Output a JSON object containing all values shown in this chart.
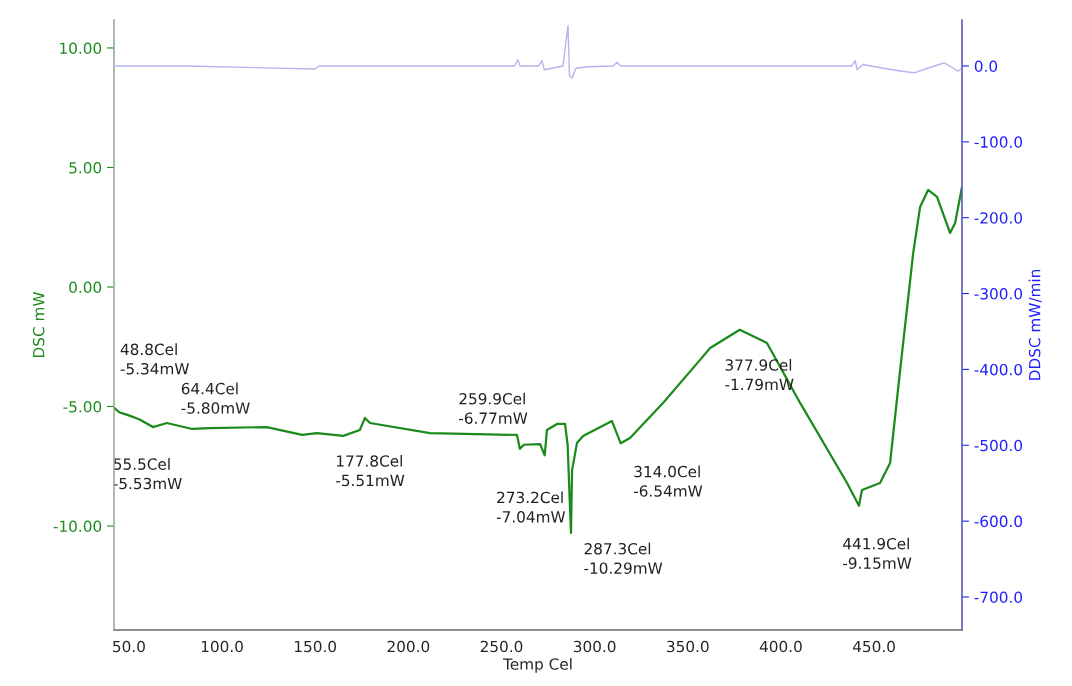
{
  "chart_data": {
    "type": "line",
    "xlabel": "Temp Cel",
    "ylabel": "DSC mW",
    "y2label": "DDSC mW/min",
    "xlim": [
      42,
      497.2
    ],
    "xticks": [
      {
        "value": 50,
        "label": "50.0"
      },
      {
        "value": 100,
        "label": "100.0"
      },
      {
        "value": 150,
        "label": "150.0"
      },
      {
        "value": 200,
        "label": "200.0"
      },
      {
        "value": 250,
        "label": "250.0"
      },
      {
        "value": 300,
        "label": "300.0"
      },
      {
        "value": 350,
        "label": "350.0"
      },
      {
        "value": 400,
        "label": "400.0"
      },
      {
        "value": 450,
        "label": "450.0"
      }
    ],
    "ylim": [
      -14.35,
      11.17
    ],
    "yticks": [
      {
        "value": -10,
        "label": "-10.00"
      },
      {
        "value": -5,
        "label": "-5.00"
      },
      {
        "value": 0,
        "label": "0.00"
      },
      {
        "value": 5,
        "label": "5.00"
      },
      {
        "value": 10,
        "label": "10.00"
      }
    ],
    "y2lim": [
      -743.5,
      60.6
    ],
    "y2ticks": [
      {
        "value": -700,
        "label": "-700.0"
      },
      {
        "value": -600,
        "label": "-600.0"
      },
      {
        "value": -500,
        "label": "-500.0"
      },
      {
        "value": -400,
        "label": "-400.0"
      },
      {
        "value": -300,
        "label": "-300.0"
      },
      {
        "value": -200,
        "label": "-200.0"
      },
      {
        "value": -100,
        "label": "-100.0"
      },
      {
        "value": 0,
        "label": "0.0"
      }
    ],
    "grid": false,
    "legend": false,
    "marker": "none",
    "line_style": "solid",
    "series": [
      {
        "color": "#1a8a1a",
        "x": [
          42,
          45,
          48.8,
          55.5,
          62.9,
          70.4,
          84,
          93.5,
          124,
          143,
          151,
          165,
          174,
          176.7,
          179.4,
          211.6,
          258.3,
          259.9,
          262,
          270.7,
          273.2,
          274.4,
          279.8,
          284.1,
          285.5,
          287.3,
          287.9,
          290.5,
          293.8,
          309.3,
          314.0,
          319,
          336.7,
          356.6,
          362,
          377.9,
          392.5,
          410.3,
          435.5,
          441.9,
          443.5,
          453.2,
          458.6,
          464,
          471,
          474.7,
          479,
          483.8,
          490.8,
          493.5,
          497.2
        ],
        "values": [
          -5.05,
          -5.25,
          -5.34,
          -5.53,
          -5.86,
          -5.69,
          -5.94,
          -5.9,
          -5.86,
          -6.19,
          -6.11,
          -6.23,
          -5.98,
          -5.48,
          -5.69,
          -6.11,
          -6.19,
          -6.77,
          -6.6,
          -6.57,
          -7.04,
          -5.98,
          -5.73,
          -5.73,
          -6.6,
          -10.29,
          -7.66,
          -6.53,
          -6.23,
          -5.61,
          -6.54,
          -6.32,
          -4.85,
          -3.05,
          -2.55,
          -1.79,
          -2.34,
          -4.85,
          -8.2,
          -9.15,
          -8.49,
          -8.2,
          -7.36,
          -3.47,
          1.42,
          3.35,
          4.06,
          3.77,
          2.26,
          2.68,
          4.18
        ]
      },
      {
        "color": "#b4b4f0",
        "axis": "y2",
        "x": [
          42,
          80,
          150,
          152,
          200,
          257,
          258.8,
          260,
          270,
          271.7,
          273,
          283,
          285.7,
          286.5,
          287.8,
          290,
          296,
          310,
          312,
          314,
          330,
          400,
          430,
          438,
          439.8,
          441,
          444,
          455,
          465,
          471.5,
          480,
          487.6,
          492,
          495,
          497.2
        ],
        "values": [
          0,
          0,
          -4,
          0,
          0,
          0,
          8,
          0,
          0,
          7,
          -5,
          0,
          53,
          -13,
          -16,
          -3,
          -1,
          0,
          5,
          0,
          0,
          0,
          0,
          0,
          7,
          -5,
          2,
          -3,
          -7,
          -9,
          -2,
          4,
          -2,
          -7,
          -3
        ]
      }
    ],
    "annotations": [
      "48.8Cel\n-5.34mW",
      {
        "text": "55.5Cel\n-5.53mW",
        "x": 55.5,
        "y": -5.53
      },
      {
        "text": "64.4Cel\n-5.80mW",
        "x": 64.4,
        "y": -5.8
      },
      "177.8Cel\n-5.51mW",
      "259.9Cel\n-6.77mW",
      {
        "text": "273.2Cel\n-7.04mW",
        "x": 273.2,
        "y": -7.04
      },
      {
        "text": "287.3Cel\n-10.29mW",
        "x": 287.3,
        "y": -10.29
      },
      {
        "text": "314.0Cel\n-6.54mW",
        "x": 314.0,
        "y": -6.54
      },
      {
        "text": "377.9Cel\n-1.79mW",
        "x": 377.9,
        "y": -1.79
      },
      {
        "text": "441.9Cel\n-9.15mW",
        "x": 441.9,
        "y": -9.15
      }
    ]
  }
}
